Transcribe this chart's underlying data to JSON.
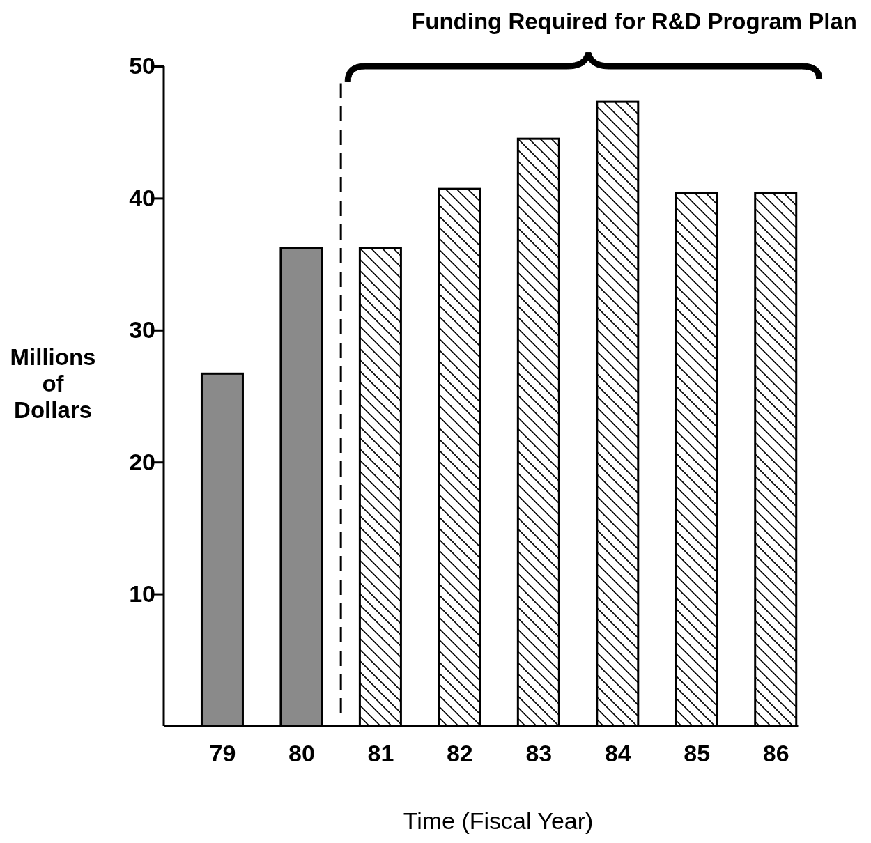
{
  "chart_data": {
    "type": "bar",
    "title": "Funding Required for R&D Program Plan",
    "xlabel": "Time (Fiscal Year)",
    "ylabel": "Millions of Dollars",
    "x": [
      79,
      80,
      81,
      82,
      83,
      84,
      85,
      86
    ],
    "series": [
      {
        "color": "#8a8a8a",
        "values": [
          26.7,
          36.2,
          null,
          null,
          null,
          null,
          null,
          null
        ]
      },
      {
        "color": "#000000",
        "values": [
          null,
          null,
          36.2,
          40.7,
          44.5,
          47.3,
          40.4,
          40.4
        ]
      }
    ],
    "xlim": [
      78.26,
      86.28
    ],
    "xticks": [
      79,
      80,
      81,
      82,
      83,
      84,
      85,
      86
    ],
    "ylim": [
      0,
      50
    ],
    "yticks": [
      10,
      20,
      30,
      40,
      50
    ],
    "ref_lines": [
      {
        "axis": "x",
        "value": 80.5,
        "line_style": "dashed",
        "color": "#000000"
      }
    ],
    "grid": false
  }
}
